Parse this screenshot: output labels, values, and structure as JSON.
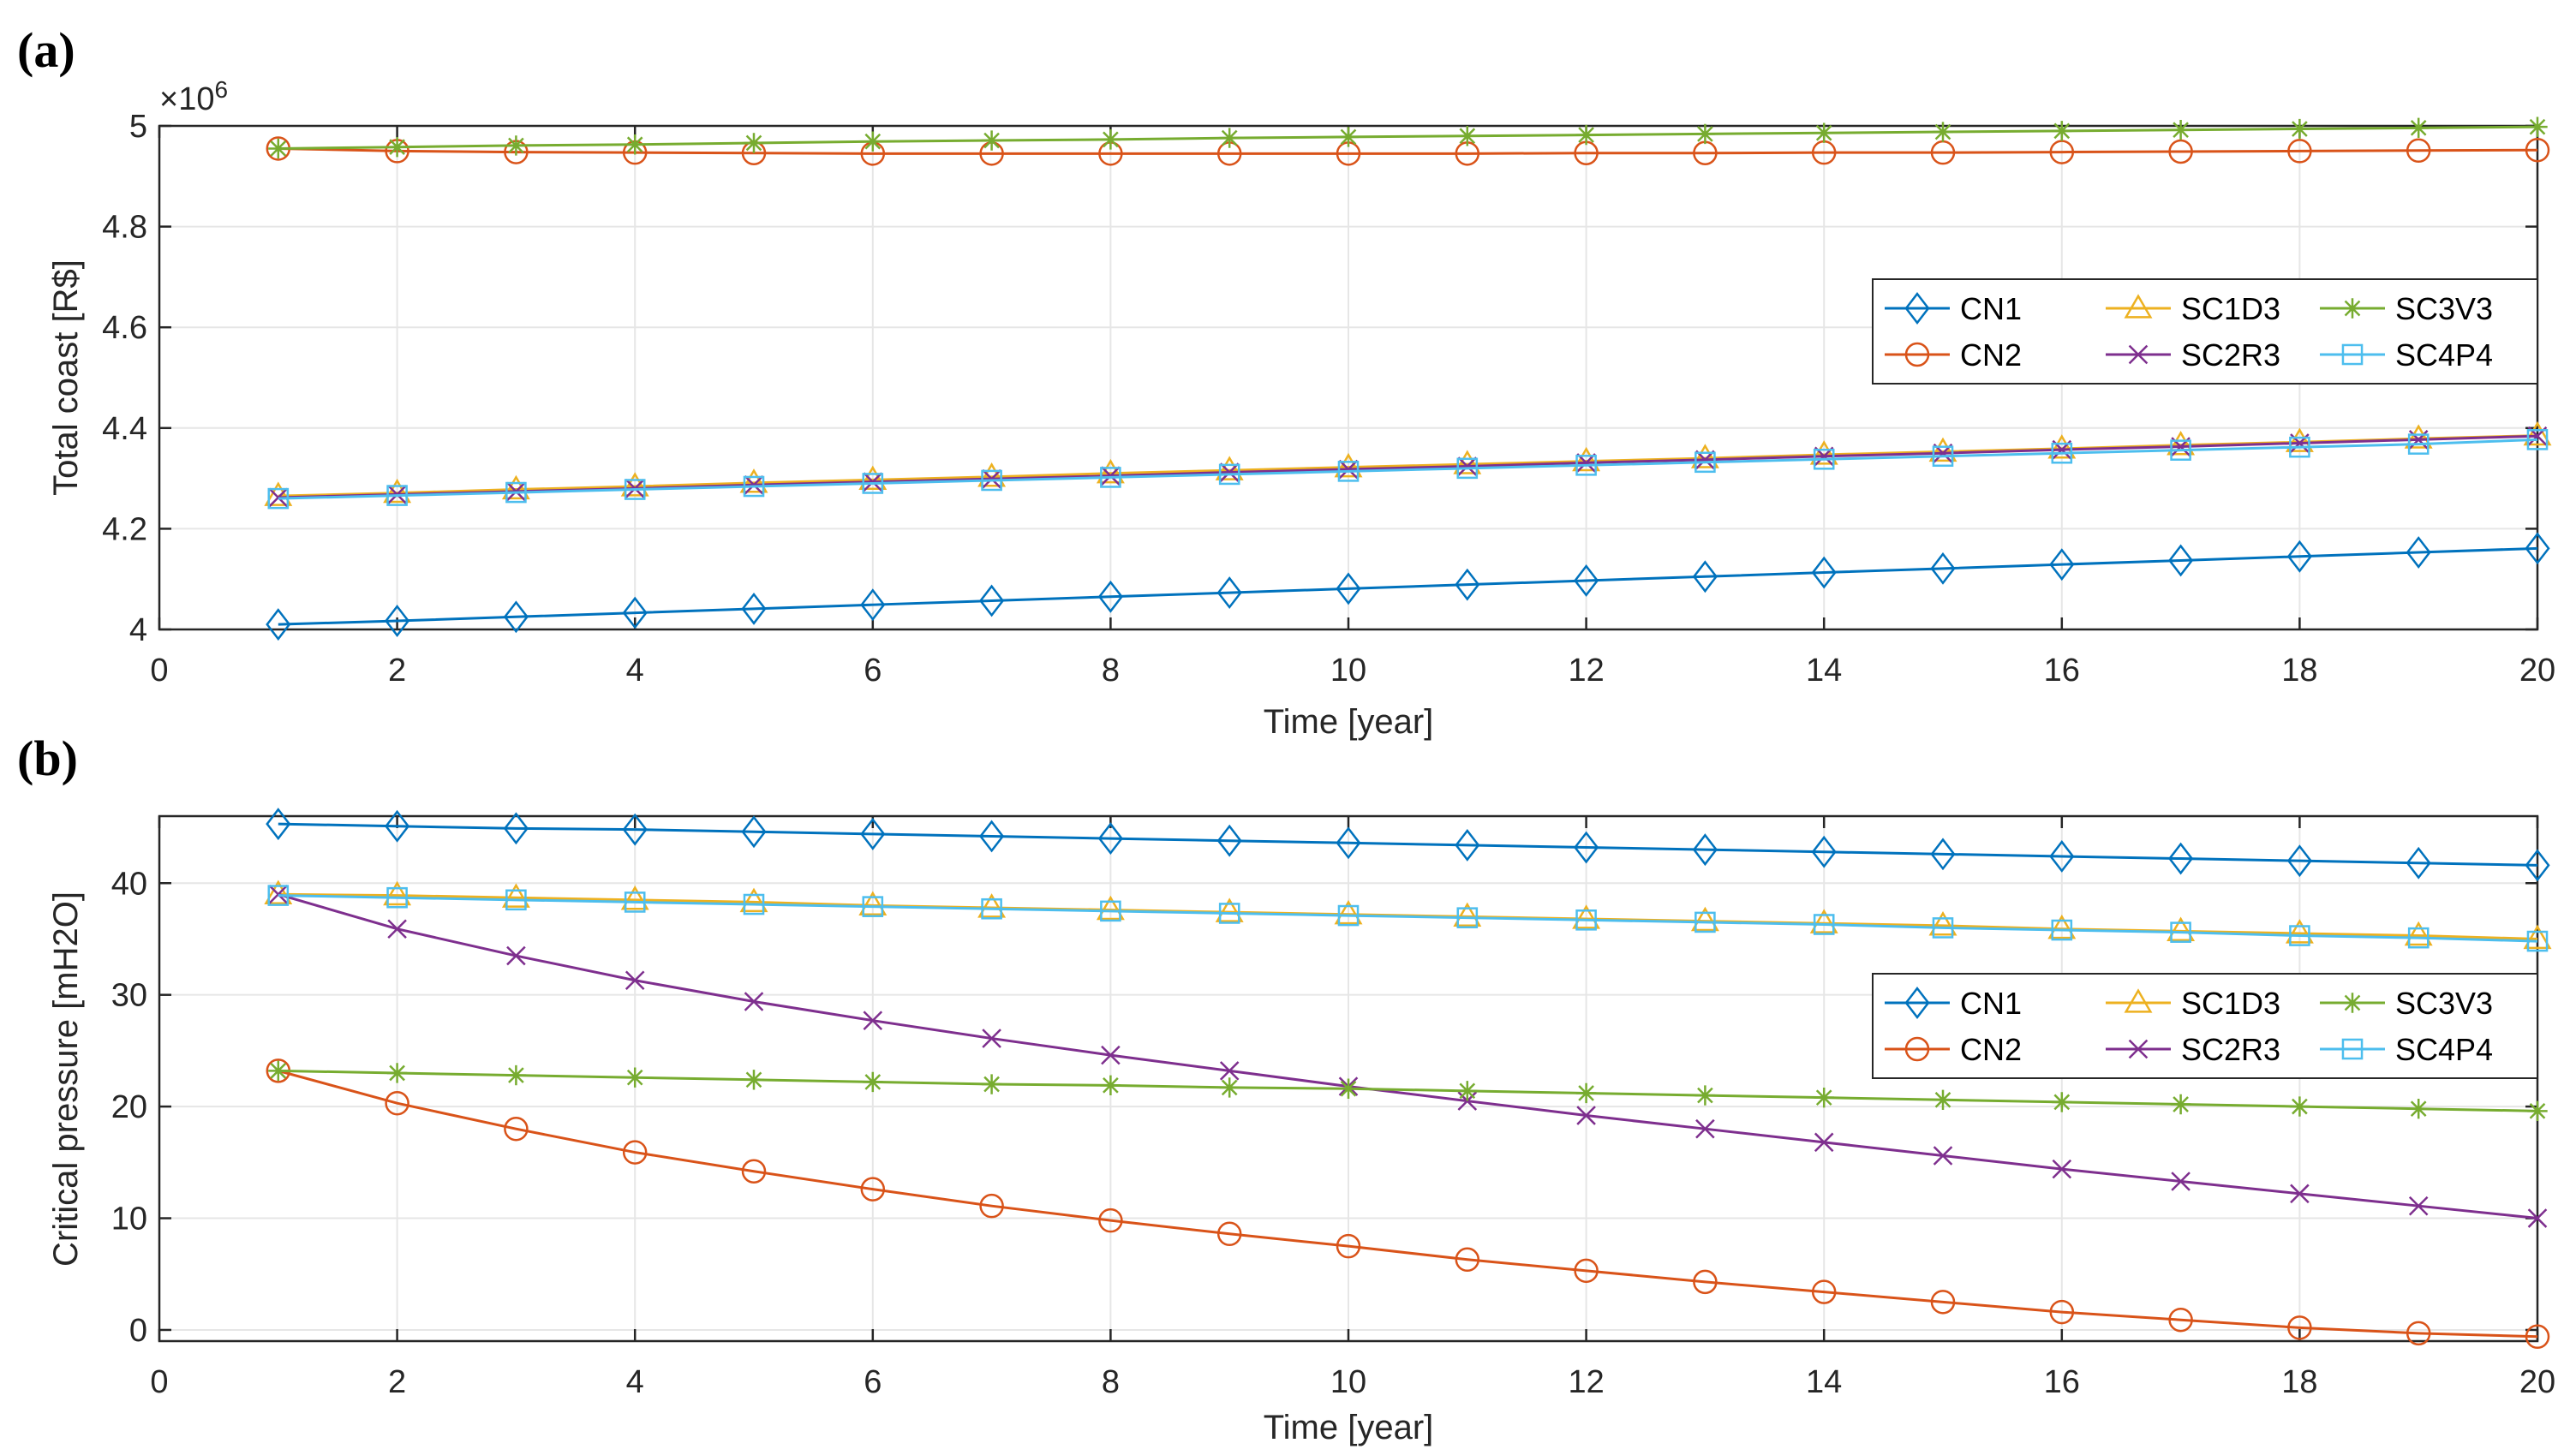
{
  "chart_data": [
    {
      "type": "line",
      "panel_label": "(a)",
      "xlabel": "Time [year]",
      "ylabel": "Total coast [R$]",
      "y_multiplier": "×10",
      "y_multiplier_exp": "6",
      "xlim": [
        0,
        20
      ],
      "ylim": [
        4,
        5
      ],
      "xticks": [
        0,
        2,
        4,
        6,
        8,
        10,
        12,
        14,
        16,
        18,
        20
      ],
      "yticks": [
        4,
        4.2,
        4.4,
        4.6,
        4.8,
        5
      ],
      "ytick_labels": [
        "4",
        "4.2",
        "4.4",
        "4.6",
        "4.8",
        "5"
      ],
      "grid": true,
      "legend_position": "right, mid-height",
      "x": [
        1,
        2,
        3,
        4,
        5,
        6,
        7,
        8,
        9,
        10,
        11,
        12,
        13,
        14,
        15,
        16,
        17,
        18,
        19,
        20
      ],
      "series": [
        {
          "name": "CN1",
          "color": "#0072BD",
          "marker": "diamond",
          "values": [
            4.01,
            4.017,
            4.025,
            4.033,
            4.041,
            4.049,
            4.057,
            4.065,
            4.073,
            4.081,
            4.089,
            4.097,
            4.105,
            4.113,
            4.121,
            4.129,
            4.137,
            4.145,
            4.153,
            4.161
          ]
        },
        {
          "name": "CN2",
          "color": "#D95319",
          "marker": "circle",
          "values": [
            4.955,
            4.95,
            4.948,
            4.947,
            4.946,
            4.945,
            4.945,
            4.945,
            4.945,
            4.945,
            4.945,
            4.946,
            4.946,
            4.947,
            4.947,
            4.948,
            4.949,
            4.95,
            4.951,
            4.952
          ]
        },
        {
          "name": "SC1D3",
          "color": "#EDB120",
          "marker": "triangle",
          "values": [
            4.265,
            4.271,
            4.278,
            4.284,
            4.291,
            4.297,
            4.303,
            4.31,
            4.316,
            4.322,
            4.328,
            4.334,
            4.34,
            4.347,
            4.353,
            4.359,
            4.366,
            4.372,
            4.379,
            4.385
          ]
        },
        {
          "name": "SC2R3",
          "color": "#7E2F8E",
          "marker": "x",
          "values": [
            4.262,
            4.268,
            4.274,
            4.28,
            4.287,
            4.293,
            4.299,
            4.305,
            4.312,
            4.318,
            4.324,
            4.331,
            4.337,
            4.344,
            4.35,
            4.357,
            4.363,
            4.37,
            4.377,
            4.384
          ]
        },
        {
          "name": "SC3V3",
          "color": "#77AC30",
          "marker": "star",
          "values": [
            4.955,
            4.958,
            4.961,
            4.963,
            4.966,
            4.969,
            4.971,
            4.973,
            4.976,
            4.978,
            4.98,
            4.982,
            4.984,
            4.986,
            4.988,
            4.99,
            4.992,
            4.994,
            4.996,
            4.998
          ]
        },
        {
          "name": "SC4P4",
          "color": "#4DBEEE",
          "marker": "square",
          "values": [
            4.26,
            4.266,
            4.272,
            4.278,
            4.284,
            4.29,
            4.296,
            4.302,
            4.308,
            4.314,
            4.32,
            4.326,
            4.332,
            4.338,
            4.344,
            4.35,
            4.356,
            4.362,
            4.368,
            4.377
          ]
        }
      ]
    },
    {
      "type": "line",
      "panel_label": "(b)",
      "xlabel": "Time [year]",
      "ylabel": "Critical pressure [mH2O]",
      "xlim": [
        0,
        20
      ],
      "ylim": [
        -1,
        46
      ],
      "xticks": [
        0,
        2,
        4,
        6,
        8,
        10,
        12,
        14,
        16,
        18,
        20
      ],
      "yticks": [
        0,
        10,
        20,
        30,
        40
      ],
      "ytick_labels": [
        "0",
        "10",
        "20",
        "30",
        "40"
      ],
      "grid": true,
      "legend_position": "right, mid-height",
      "x": [
        1,
        2,
        3,
        4,
        5,
        6,
        7,
        8,
        9,
        10,
        11,
        12,
        13,
        14,
        15,
        16,
        17,
        18,
        19,
        20
      ],
      "series": [
        {
          "name": "CN1",
          "color": "#0072BD",
          "marker": "diamond",
          "values": [
            45.3,
            45.1,
            44.9,
            44.8,
            44.6,
            44.4,
            44.2,
            44.0,
            43.8,
            43.6,
            43.4,
            43.2,
            43.0,
            42.8,
            42.6,
            42.4,
            42.2,
            42.0,
            41.8,
            41.6
          ]
        },
        {
          "name": "CN2",
          "color": "#D95319",
          "marker": "circle",
          "values": [
            23.2,
            20.3,
            18.0,
            15.9,
            14.2,
            12.6,
            11.1,
            9.8,
            8.6,
            7.5,
            6.3,
            5.3,
            4.3,
            3.4,
            2.5,
            1.6,
            0.9,
            0.2,
            -0.3,
            -0.6
          ]
        },
        {
          "name": "SC1D3",
          "color": "#EDB120",
          "marker": "triangle",
          "values": [
            39.0,
            38.9,
            38.7,
            38.5,
            38.3,
            38.0,
            37.8,
            37.6,
            37.4,
            37.2,
            37.0,
            36.8,
            36.6,
            36.4,
            36.2,
            35.9,
            35.7,
            35.5,
            35.3,
            35.0
          ]
        },
        {
          "name": "SC2R3",
          "color": "#7E2F8E",
          "marker": "x",
          "values": [
            39.0,
            35.9,
            33.5,
            31.3,
            29.4,
            27.7,
            26.1,
            24.6,
            23.2,
            21.8,
            20.5,
            19.2,
            18.0,
            16.8,
            15.6,
            14.4,
            13.3,
            12.2,
            11.1,
            10.0
          ]
        },
        {
          "name": "SC3V3",
          "color": "#77AC30",
          "marker": "star",
          "values": [
            23.2,
            23.0,
            22.8,
            22.6,
            22.4,
            22.2,
            22.0,
            21.9,
            21.7,
            21.6,
            21.4,
            21.2,
            21.0,
            20.8,
            20.6,
            20.4,
            20.2,
            20.0,
            19.8,
            19.6
          ]
        },
        {
          "name": "SC4P4",
          "color": "#4DBEEE",
          "marker": "square",
          "values": [
            38.9,
            38.7,
            38.5,
            38.3,
            38.1,
            37.9,
            37.7,
            37.5,
            37.3,
            37.1,
            36.9,
            36.7,
            36.5,
            36.3,
            36.0,
            35.8,
            35.6,
            35.3,
            35.1,
            34.8
          ]
        }
      ]
    }
  ]
}
